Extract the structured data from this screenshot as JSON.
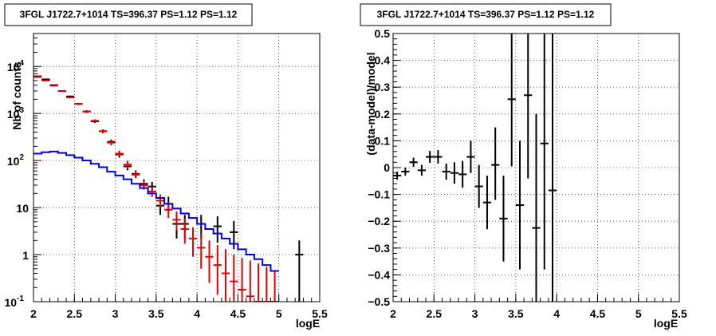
{
  "chart_data": [
    {
      "type": "scatter",
      "title": "3FGL J1722.7+1014 TS=396.37 PS=1.12 PS=1.12",
      "xlabel": "logE",
      "ylabel": "Nb of counts",
      "xlim": [
        2,
        5.5
      ],
      "ylim": [
        0.1,
        50000
      ],
      "yscale": "log",
      "grid": true,
      "x_ticks": [
        "2",
        "2.5",
        "3",
        "3.5",
        "4",
        "4.5",
        "5",
        "5.5"
      ],
      "y_ticks": [
        {
          "value": 0.1,
          "base": "10",
          "exp": "-1"
        },
        {
          "value": 1,
          "base": "1",
          "exp": ""
        },
        {
          "value": 10,
          "base": "10",
          "exp": ""
        },
        {
          "value": 100,
          "base": "10",
          "exp": "2"
        },
        {
          "value": 1000,
          "base": "10",
          "exp": "3"
        },
        {
          "value": 10000,
          "base": "10",
          "exp": "4"
        }
      ],
      "series": [
        {
          "color": "#000000",
          "points": [
            {
              "x": 2.05,
              "y": 6000,
              "lo": 5850,
              "hi": 6150
            },
            {
              "x": 2.15,
              "y": 5300,
              "lo": 5150,
              "hi": 5450
            },
            {
              "x": 2.25,
              "y": 4000,
              "lo": 3870,
              "hi": 4130
            },
            {
              "x": 2.35,
              "y": 3000,
              "lo": 2890,
              "hi": 3110
            },
            {
              "x": 2.45,
              "y": 2300,
              "lo": 2200,
              "hi": 2400
            },
            {
              "x": 2.55,
              "y": 1600,
              "lo": 1520,
              "hi": 1680
            },
            {
              "x": 2.65,
              "y": 1100,
              "lo": 1035,
              "hi": 1165
            },
            {
              "x": 2.75,
              "y": 680,
              "lo": 628,
              "hi": 732
            },
            {
              "x": 2.85,
              "y": 420,
              "lo": 380,
              "hi": 460
            },
            {
              "x": 2.95,
              "y": 250,
              "lo": 220,
              "hi": 280
            },
            {
              "x": 3.05,
              "y": 135,
              "lo": 115,
              "hi": 158
            },
            {
              "x": 3.15,
              "y": 75,
              "lo": 62,
              "hi": 92
            },
            {
              "x": 3.25,
              "y": 52,
              "lo": 44,
              "hi": 62
            },
            {
              "x": 3.35,
              "y": 32,
              "lo": 26,
              "hi": 40
            },
            {
              "x": 3.45,
              "y": 28,
              "lo": 22,
              "hi": 35
            },
            {
              "x": 3.55,
              "y": 11,
              "lo": 7,
              "hi": 15
            },
            {
              "x": 3.65,
              "y": 12,
              "lo": 8,
              "hi": 17
            },
            {
              "x": 3.75,
              "y": 4.5,
              "lo": 2.2,
              "hi": 7
            },
            {
              "x": 3.85,
              "y": 4.5,
              "lo": 2.2,
              "hi": 7
            },
            {
              "x": 4.05,
              "y": 4.5,
              "lo": 2.2,
              "hi": 7
            },
            {
              "x": 4.25,
              "y": 4.0,
              "lo": 1.8,
              "hi": 6.5
            },
            {
              "x": 4.45,
              "y": 3.0,
              "lo": 1.3,
              "hi": 5.2
            },
            {
              "x": 5.25,
              "y": 1.0,
              "lo": 0.1,
              "hi": 2.0
            }
          ]
        },
        {
          "color": "#e00000",
          "points": [
            {
              "x": 2.05,
              "y": 6200,
              "lo": 6050,
              "hi": 6350
            },
            {
              "x": 2.15,
              "y": 5000,
              "lo": 4860,
              "hi": 5140
            },
            {
              "x": 2.25,
              "y": 3900,
              "lo": 3780,
              "hi": 4020
            },
            {
              "x": 2.35,
              "y": 3000,
              "lo": 2890,
              "hi": 3110
            },
            {
              "x": 2.45,
              "y": 2200,
              "lo": 2105,
              "hi": 2295
            },
            {
              "x": 2.55,
              "y": 1600,
              "lo": 1520,
              "hi": 1680
            },
            {
              "x": 2.65,
              "y": 1100,
              "lo": 1035,
              "hi": 1165
            },
            {
              "x": 2.75,
              "y": 700,
              "lo": 648,
              "hi": 752
            },
            {
              "x": 2.85,
              "y": 420,
              "lo": 380,
              "hi": 460
            },
            {
              "x": 2.95,
              "y": 240,
              "lo": 210,
              "hi": 270
            },
            {
              "x": 3.05,
              "y": 140,
              "lo": 120,
              "hi": 162
            },
            {
              "x": 3.15,
              "y": 82,
              "lo": 68,
              "hi": 98
            },
            {
              "x": 3.25,
              "y": 50,
              "lo": 42,
              "hi": 60
            },
            {
              "x": 3.35,
              "y": 30,
              "lo": 24,
              "hi": 37
            },
            {
              "x": 3.45,
              "y": 22,
              "lo": 17,
              "hi": 28
            },
            {
              "x": 3.55,
              "y": 14,
              "lo": 10,
              "hi": 19
            },
            {
              "x": 3.65,
              "y": 9,
              "lo": 6,
              "hi": 13
            },
            {
              "x": 3.75,
              "y": 5.5,
              "lo": 3.3,
              "hi": 8.2
            },
            {
              "x": 3.85,
              "y": 3.5,
              "lo": 1.7,
              "hi": 5.8
            },
            {
              "x": 3.95,
              "y": 2.2,
              "lo": 0.9,
              "hi": 3.8
            },
            {
              "x": 4.05,
              "y": 1.4,
              "lo": 0.5,
              "hi": 2.8
            },
            {
              "x": 4.15,
              "y": 0.9,
              "lo": 0.25,
              "hi": 2.0
            },
            {
              "x": 4.25,
              "y": 0.6,
              "lo": 0.14,
              "hi": 1.6
            },
            {
              "x": 4.35,
              "y": 0.4,
              "lo": 0.1,
              "hi": 1.3
            },
            {
              "x": 4.45,
              "y": 0.27,
              "lo": 0.1,
              "hi": 1.0
            },
            {
              "x": 4.55,
              "y": 0.18,
              "lo": 0.1,
              "hi": 0.85
            },
            {
              "x": 4.65,
              "y": 0.13,
              "lo": 0.1,
              "hi": 0.75
            },
            {
              "x": 4.75,
              "y": 0.1,
              "lo": 0.1,
              "hi": 0.65
            },
            {
              "x": 4.85,
              "y": 0.1,
              "lo": 0.1,
              "hi": 0.55
            },
            {
              "x": 4.95,
              "y": 0.1,
              "lo": 0.1,
              "hi": 0.45
            }
          ]
        },
        {
          "color": "#0000dd",
          "step": true,
          "edges": [
            2.0,
            2.1,
            2.2,
            2.3,
            2.4,
            2.5,
            2.6,
            2.7,
            2.8,
            2.9,
            3.0,
            3.1,
            3.2,
            3.3,
            3.4,
            3.5,
            3.6,
            3.7,
            3.8,
            3.9,
            4.0,
            4.1,
            4.2,
            4.3,
            4.4,
            4.5,
            4.6,
            4.7,
            4.8,
            4.9,
            5.0
          ],
          "values": [
            140,
            150,
            155,
            145,
            130,
            115,
            100,
            85,
            72,
            58,
            48,
            40,
            32,
            26,
            20,
            16,
            12,
            9.5,
            7.5,
            6,
            4.5,
            3.5,
            2.8,
            2.2,
            1.7,
            1.3,
            1.0,
            0.8,
            0.6,
            0.45
          ]
        }
      ]
    },
    {
      "type": "scatter",
      "title": "3FGL J1722.7+1014 TS=396.37 PS=1.12 PS=1.12",
      "xlabel": "logE",
      "ylabel": "(data-model)/model",
      "xlim": [
        2,
        5.5
      ],
      "ylim": [
        -0.5,
        0.5
      ],
      "grid": true,
      "x_ticks": [
        "2",
        "2.5",
        "3",
        "3.5",
        "4",
        "4.5",
        "5",
        "5.5"
      ],
      "y_ticks": [
        "−0.5",
        "−0.4",
        "−0.3",
        "−0.2",
        "−0.1",
        "0",
        "0.1",
        "0.2",
        "0.3",
        "0.4",
        "0.5"
      ],
      "y_tick_values": [
        -0.5,
        -0.4,
        -0.3,
        -0.2,
        -0.1,
        0,
        0.1,
        0.2,
        0.3,
        0.4,
        0.5
      ],
      "series": [
        {
          "color": "#000000",
          "points": [
            {
              "x": 2.05,
              "y": -0.03,
              "lo": -0.045,
              "hi": -0.015
            },
            {
              "x": 2.15,
              "y": -0.015,
              "lo": -0.03,
              "hi": 0.0
            },
            {
              "x": 2.25,
              "y": 0.02,
              "lo": 0.003,
              "hi": 0.037
            },
            {
              "x": 2.35,
              "y": -0.01,
              "lo": -0.03,
              "hi": 0.01
            },
            {
              "x": 2.45,
              "y": 0.04,
              "lo": 0.018,
              "hi": 0.062
            },
            {
              "x": 2.55,
              "y": 0.04,
              "lo": 0.015,
              "hi": 0.065
            },
            {
              "x": 2.65,
              "y": -0.015,
              "lo": -0.045,
              "hi": 0.015
            },
            {
              "x": 2.75,
              "y": -0.02,
              "lo": -0.06,
              "hi": 0.02
            },
            {
              "x": 2.85,
              "y": -0.025,
              "lo": -0.075,
              "hi": 0.025
            },
            {
              "x": 2.95,
              "y": 0.04,
              "lo": -0.02,
              "hi": 0.1
            },
            {
              "x": 3.05,
              "y": -0.07,
              "lo": -0.15,
              "hi": 0.01
            },
            {
              "x": 3.15,
              "y": -0.13,
              "lo": -0.23,
              "hi": -0.03
            },
            {
              "x": 3.25,
              "y": 0.01,
              "lo": -0.12,
              "hi": 0.15
            },
            {
              "x": 3.35,
              "y": -0.19,
              "lo": -0.35,
              "hi": -0.03
            },
            {
              "x": 3.45,
              "y": 0.255,
              "lo": 0.005,
              "hi": 0.5
            },
            {
              "x": 3.55,
              "y": -0.14,
              "lo": -0.38,
              "hi": 0.1
            },
            {
              "x": 3.65,
              "y": 0.27,
              "lo": -0.04,
              "hi": 0.5
            },
            {
              "x": 3.75,
              "y": -0.225,
              "lo": -0.5,
              "hi": 0.2
            },
            {
              "x": 3.85,
              "y": 0.09,
              "lo": -0.38,
              "hi": 0.5
            },
            {
              "x": 3.95,
              "y": -0.085,
              "lo": -0.5,
              "hi": 0.5
            }
          ]
        }
      ]
    }
  ]
}
